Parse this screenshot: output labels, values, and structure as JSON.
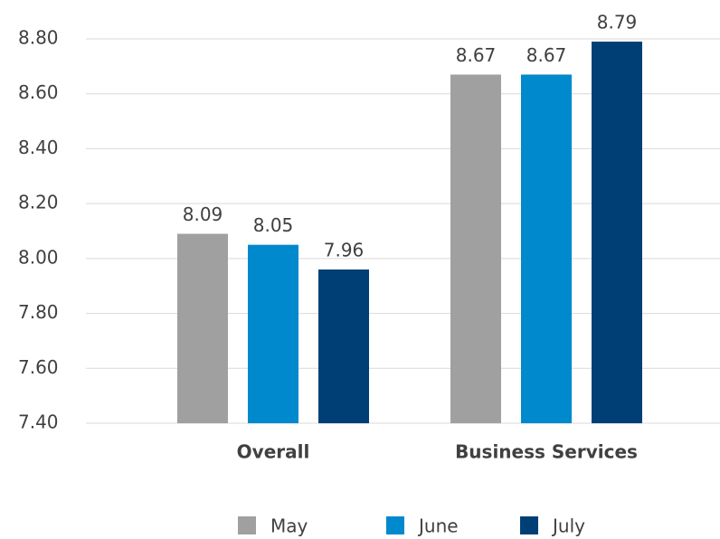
{
  "chart_data": {
    "type": "bar",
    "categories": [
      "Overall",
      "Business Services"
    ],
    "series": [
      {
        "name": "May",
        "color": "#a0a0a0",
        "values": [
          8.09,
          8.67
        ]
      },
      {
        "name": "June",
        "color": "#0089cc",
        "values": [
          8.05,
          8.67
        ]
      },
      {
        "name": "July",
        "color": "#003f76",
        "values": [
          7.96,
          8.79
        ]
      }
    ],
    "ylim": [
      7.4,
      8.8
    ],
    "yticks": [
      {
        "value": 7.4,
        "label": "7.40"
      },
      {
        "value": 7.6,
        "label": "7.60"
      },
      {
        "value": 7.8,
        "label": "7.80"
      },
      {
        "value": 8.0,
        "label": "8.00"
      },
      {
        "value": 8.2,
        "label": "8.20"
      },
      {
        "value": 8.4,
        "label": "8.40"
      },
      {
        "value": 8.6,
        "label": "8.60"
      },
      {
        "value": 8.8,
        "label": "8.80"
      }
    ],
    "grid": true,
    "legend": "bottom"
  }
}
